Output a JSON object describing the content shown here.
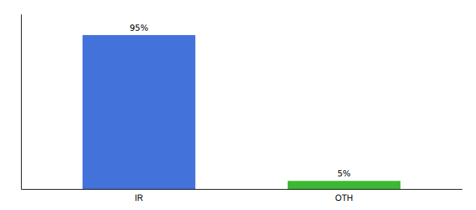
{
  "chart_data": {
    "type": "bar",
    "categories": [
      "IR",
      "OTH"
    ],
    "values": [
      95,
      5
    ],
    "value_labels": [
      "95%",
      "5%"
    ],
    "colors": [
      "#4472db",
      "#3cb832"
    ],
    "ylim": [
      0,
      108
    ],
    "data_labels": true,
    "tick_labels": "x"
  }
}
